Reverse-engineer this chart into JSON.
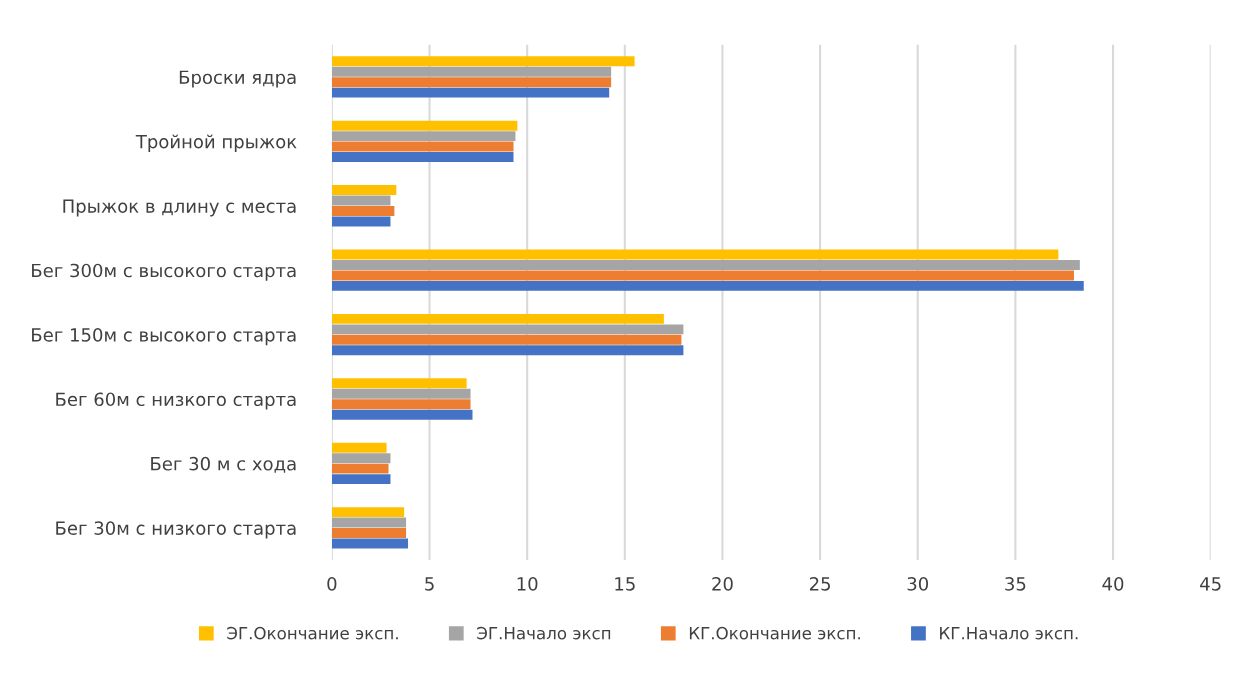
{
  "chart_data": {
    "type": "bar",
    "orientation": "horizontal",
    "categories": [
      "Броски ядра",
      "Тройной прыжок",
      "Прыжок в длину с места",
      "Бег 300м с высокого старта",
      "Бег 150м с высокого старта",
      "Бег 60м с низкого старта",
      "Бег 30 м с хода",
      "Бег 30м с низкого старта"
    ],
    "series": [
      {
        "name": "ЭГ.Окончание эксп.",
        "color": "#ffc000",
        "values": [
          15.5,
          9.5,
          3.3,
          37.2,
          17.0,
          6.9,
          2.8,
          3.7
        ]
      },
      {
        "name": "ЭГ.Начало эксп",
        "color": "#a5a5a5",
        "values": [
          14.3,
          9.4,
          3.0,
          38.3,
          18.0,
          7.1,
          3.0,
          3.8
        ]
      },
      {
        "name": "КГ.Окончание эксп.",
        "color": "#ed7d31",
        "values": [
          14.3,
          9.3,
          3.2,
          38.0,
          17.9,
          7.1,
          2.9,
          3.8
        ]
      },
      {
        "name": "КГ.Начало эксп.",
        "color": "#4472c4",
        "values": [
          14.2,
          9.3,
          3.0,
          38.5,
          18.0,
          7.2,
          3.0,
          3.9
        ]
      }
    ],
    "xlim": [
      0,
      45
    ],
    "xticks": [
      0,
      5,
      10,
      15,
      20,
      25,
      30,
      35,
      40,
      45
    ],
    "grid": "x",
    "legend": "bottom"
  }
}
